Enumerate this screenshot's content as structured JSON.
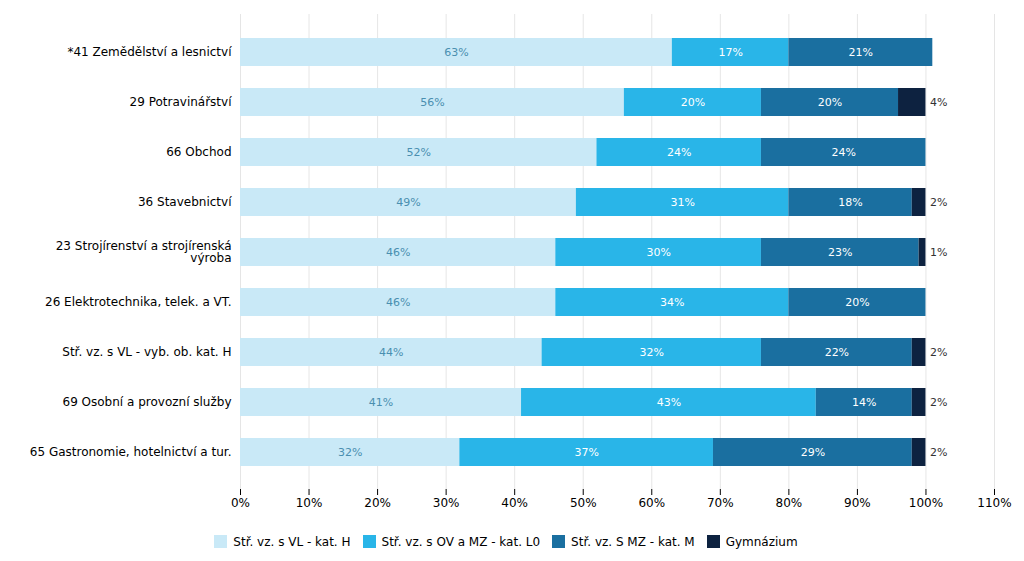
{
  "chart_data": {
    "type": "bar",
    "orientation": "horizontal",
    "stacked": true,
    "categories": [
      "*41 Zemědělství a lesnictví",
      "29 Potravinářství",
      "66 Obchod",
      "36 Stavebnictví",
      "23 Strojírenství a strojírenská\nvýroba",
      "26 Elektrotechnika, telek. a VT.",
      "Stř. vz. s VL - vyb. ob. kat. H",
      "69 Osobní a provozní služby",
      "65 Gastronomie, hotelnictví a tur."
    ],
    "series": [
      {
        "name": "Stř. vz. s VL - kat. H",
        "color": "#c9e9f7",
        "values": [
          63,
          56,
          52,
          49,
          46,
          46,
          44,
          41,
          32
        ],
        "value_labels": [
          "63%",
          "56%",
          "52%",
          "49%",
          "46%",
          "46%",
          "44%",
          "41%",
          "32%"
        ]
      },
      {
        "name": "Stř. vz. s OV a MZ - kat. L0",
        "color": "#29b5e8",
        "values": [
          17,
          20,
          24,
          31,
          30,
          34,
          32,
          43,
          37
        ],
        "value_labels": [
          "17%",
          "20%",
          "24%",
          "31%",
          "30%",
          "34%",
          "32%",
          "43%",
          "37%"
        ]
      },
      {
        "name": "Stř. vz. S MZ - kat. M",
        "color": "#1a6fa0",
        "values": [
          21,
          20,
          24,
          18,
          23,
          20,
          22,
          14,
          29
        ],
        "value_labels": [
          "21%",
          "20%",
          "24%",
          "18%",
          "23%",
          "20%",
          "22%",
          "14%",
          "29%"
        ]
      },
      {
        "name": "Gymnázium",
        "color": "#0d2240",
        "values": [
          0,
          4,
          0,
          2,
          1,
          0,
          2,
          2,
          2
        ],
        "value_labels": [
          null,
          "4%",
          null,
          "2%",
          "1%",
          null,
          "2%",
          "2%",
          "2%"
        ]
      }
    ],
    "xlim": [
      0,
      110
    ],
    "xticks": [
      {
        "value": 0,
        "label": "0%"
      },
      {
        "value": 10,
        "label": "10%"
      },
      {
        "value": 20,
        "label": "20%"
      },
      {
        "value": 30,
        "label": "30%"
      },
      {
        "value": 40,
        "label": "40%"
      },
      {
        "value": 50,
        "label": "50%"
      },
      {
        "value": 60,
        "label": "60%"
      },
      {
        "value": 70,
        "label": "70%"
      },
      {
        "value": 80,
        "label": "80%"
      },
      {
        "value": 90,
        "label": "90%"
      },
      {
        "value": 100,
        "label": "100%"
      },
      {
        "value": 110,
        "label": "110%"
      }
    ],
    "grid": true,
    "legend": "bottom",
    "data_labels": true
  }
}
